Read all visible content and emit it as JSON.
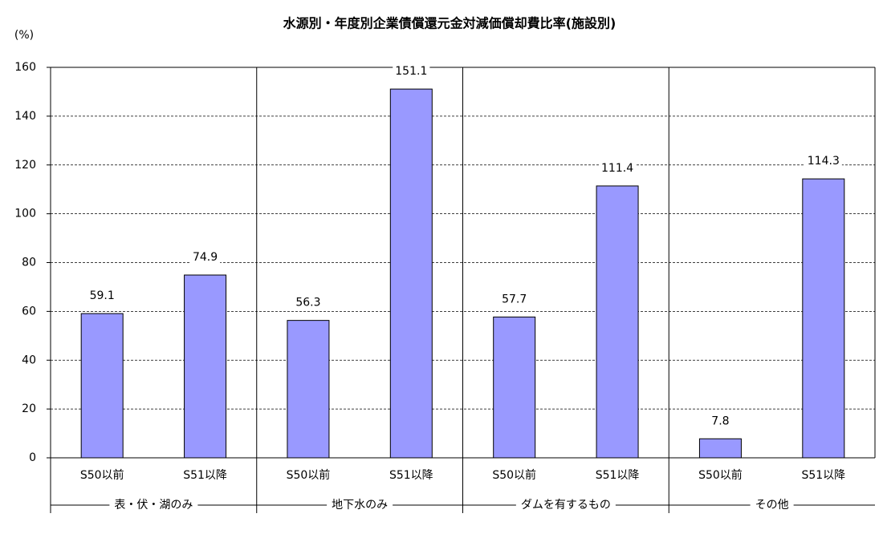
{
  "chart_data": {
    "type": "bar",
    "title": "水源別・年度別企業債償還元金対減価償却費比率(施設別)",
    "y_unit": "(%)",
    "categories": [
      "S50以前",
      "S51以降",
      "S50以前",
      "S51以降",
      "S50以前",
      "S51以降",
      "S50以前",
      "S51以降"
    ],
    "groups": [
      "表・伏・湖のみ",
      "地下水のみ",
      "ダムを有するもの",
      "その他"
    ],
    "values": [
      59.1,
      74.9,
      56.3,
      151.1,
      57.7,
      111.4,
      7.8,
      114.3
    ],
    "color": "#9999ff",
    "ylim": [
      0,
      160
    ],
    "yticks": [
      0,
      20,
      40,
      60,
      80,
      100,
      120,
      140,
      160
    ],
    "grid": true
  }
}
